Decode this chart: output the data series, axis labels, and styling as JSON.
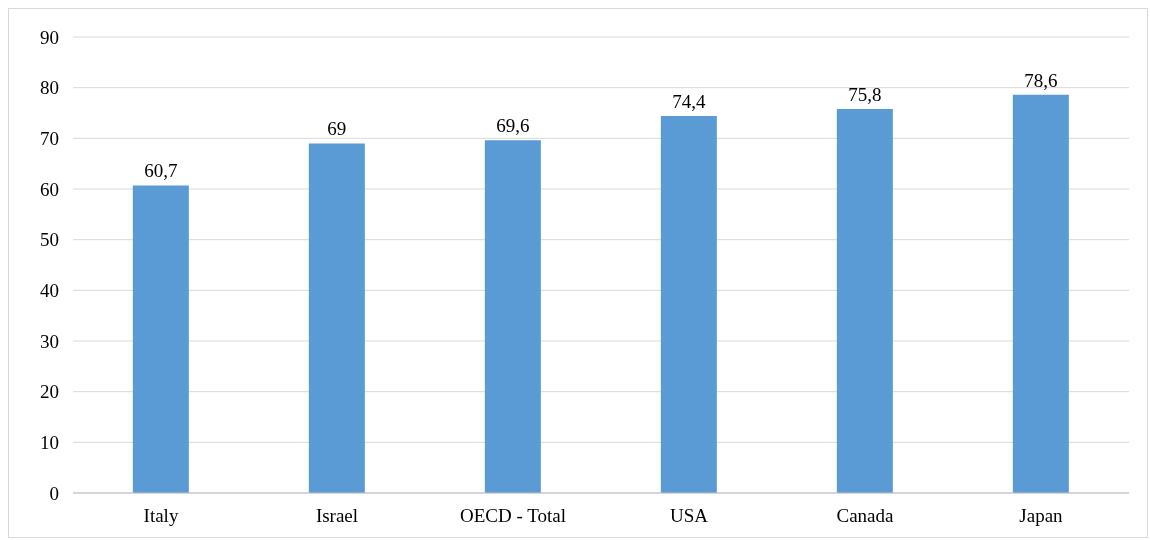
{
  "chart_data": {
    "type": "bar",
    "categories": [
      "Italy",
      "Israel",
      "OECD - Total",
      "USA",
      "Canada",
      "Japan"
    ],
    "values": [
      60.7,
      69,
      69.6,
      74.4,
      75.8,
      78.6
    ],
    "value_labels": [
      "60,7",
      "69",
      "69,6",
      "74,4",
      "75,8",
      "78,6"
    ],
    "color": "#5b9bd5",
    "ylim": [
      0,
      90
    ],
    "yticks": [
      0,
      10,
      20,
      30,
      40,
      50,
      60,
      70,
      80,
      90
    ],
    "grid": "y"
  }
}
